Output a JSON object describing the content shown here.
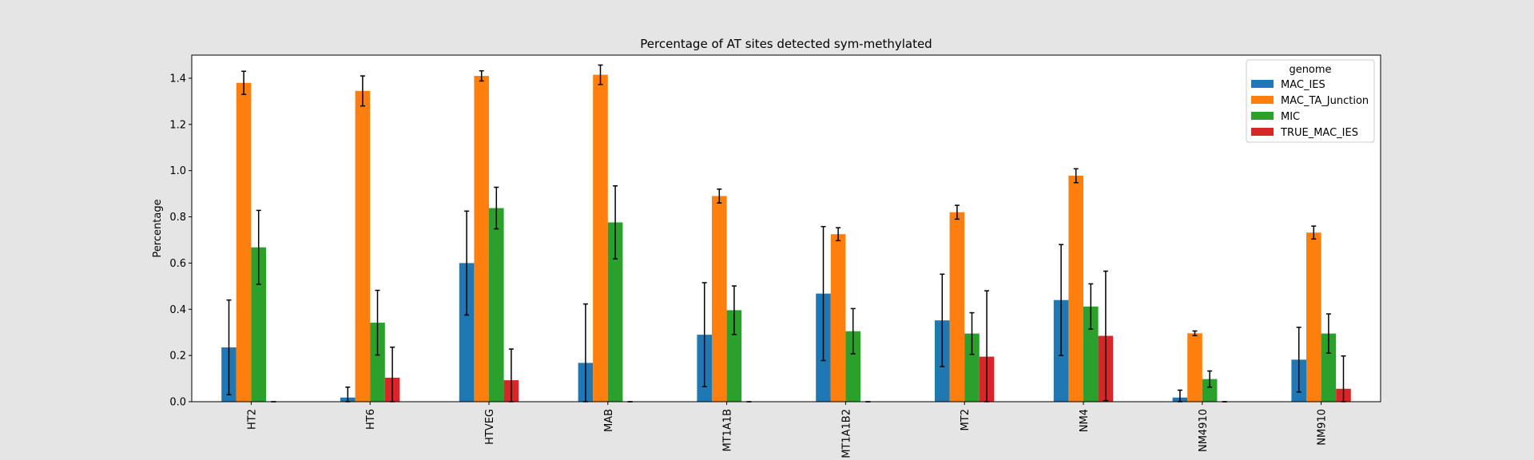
{
  "chart_data": {
    "type": "bar",
    "title": "Percentage of AT sites detected sym-methylated",
    "xlabel": "",
    "ylabel": "Percentage",
    "ylim": [
      0,
      1.5
    ],
    "yticks": [
      0.0,
      0.2,
      0.4,
      0.6,
      0.8,
      1.0,
      1.2,
      1.4
    ],
    "categories": [
      "HT2",
      "HT6",
      "HTVEG",
      "MAB",
      "MT1A1B",
      "MT1A1B2",
      "MT2",
      "NM4",
      "NM4910",
      "NM910"
    ],
    "legend": {
      "title": "genome",
      "position": "top-right"
    },
    "series": [
      {
        "name": "MAC_IES",
        "color": "#1f77b4",
        "values": [
          0.235,
          0.018,
          0.6,
          0.168,
          0.29,
          0.468,
          0.352,
          0.44,
          0.018,
          0.182
        ],
        "errors": [
          0.205,
          0.045,
          0.225,
          0.255,
          0.225,
          0.29,
          0.2,
          0.24,
          0.032,
          0.14
        ]
      },
      {
        "name": "MAC_TA_Junction",
        "color": "#ff7f0e",
        "values": [
          1.38,
          1.345,
          1.41,
          1.415,
          0.89,
          0.725,
          0.82,
          0.978,
          0.296,
          0.732
        ],
        "errors": [
          0.05,
          0.065,
          0.022,
          0.042,
          0.03,
          0.028,
          0.03,
          0.03,
          0.01,
          0.028
        ]
      },
      {
        "name": "MIC",
        "color": "#2ca02c",
        "values": [
          0.668,
          0.342,
          0.838,
          0.776,
          0.396,
          0.305,
          0.295,
          0.412,
          0.098,
          0.295
        ],
        "errors": [
          0.16,
          0.14,
          0.09,
          0.158,
          0.105,
          0.098,
          0.09,
          0.098,
          0.035,
          0.085
        ]
      },
      {
        "name": "TRUE_MAC_IES",
        "color": "#d62728",
        "values": [
          0.0,
          0.104,
          0.093,
          0.0,
          0.0,
          0.0,
          0.195,
          0.285,
          0.0,
          0.056
        ],
        "errors": [
          0.0,
          0.132,
          0.135,
          0.0,
          0.0,
          0.0,
          0.285,
          0.28,
          0.0,
          0.142
        ]
      }
    ]
  }
}
